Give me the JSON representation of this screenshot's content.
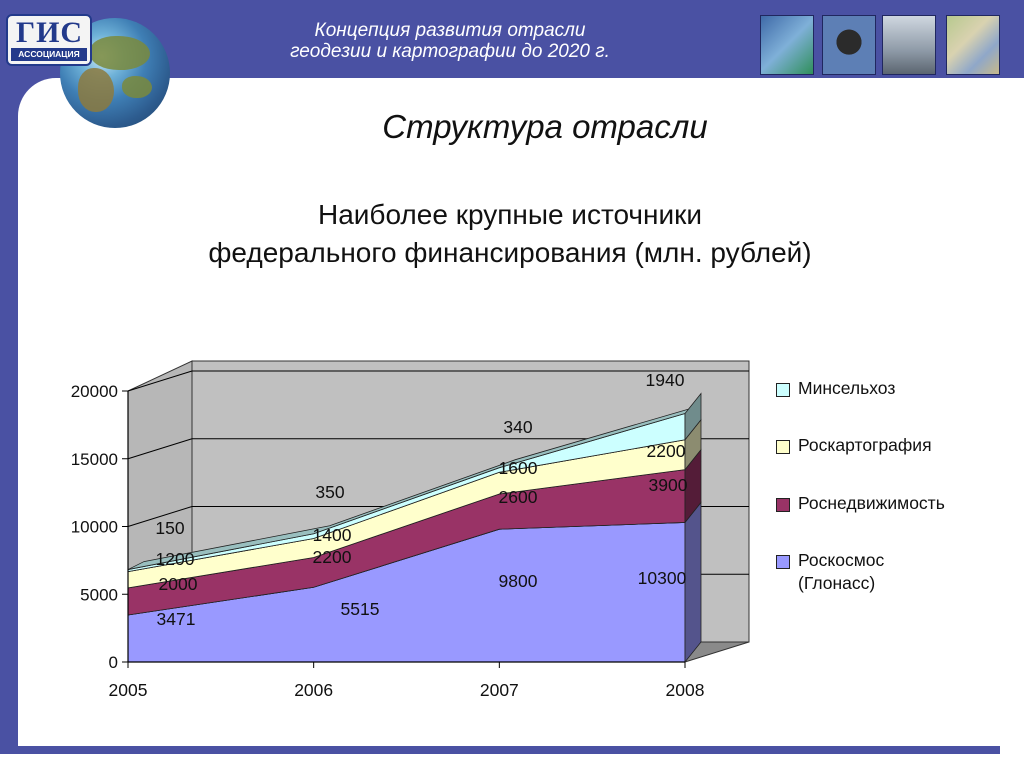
{
  "header": {
    "title_line1": "Концепция развития отрасли",
    "title_line2": "геодезии и картографии до 2020 г.",
    "logo_text": "ГИС",
    "logo_subtext": "АССОЦИАЦИЯ",
    "thumbnails": [
      "software-box-icon",
      "total-station-icon",
      "city-buildings-icon",
      "city-map-icon"
    ]
  },
  "slide": {
    "title": "Структура отрасли"
  },
  "colors": {
    "header_bg": "#4a51a3",
    "series": [
      "#9999ff",
      "#993366",
      "#ffffcc",
      "#ccffff"
    ]
  },
  "chart_data": {
    "type": "area",
    "title_line1": "Наиболее крупные источники",
    "title_line2": "федерального финансирования (млн. рублей)",
    "stacked": true,
    "three_d": true,
    "x": [
      "2005",
      "2006",
      "2007",
      "2008"
    ],
    "ylim": [
      0,
      20000
    ],
    "yticks": [
      "0",
      "5000",
      "10000",
      "15000",
      "20000"
    ],
    "legend_position": "right",
    "series": [
      {
        "name": "Роскосмос (Глонасс)",
        "name_lines": [
          "Роскосмос",
          "(Глонасс)"
        ],
        "values": [
          3471,
          5515,
          9800,
          10300
        ],
        "labels": [
          "3471",
          "5515",
          "9800",
          "10300"
        ]
      },
      {
        "name": "Роснедвижимость",
        "values": [
          2000,
          2200,
          2600,
          3900
        ],
        "labels": [
          "2000",
          "2200",
          "2600",
          "3900"
        ]
      },
      {
        "name": "Роскартография",
        "values": [
          1200,
          1400,
          1600,
          2200
        ],
        "labels": [
          "1200",
          "1400",
          "1600",
          "2200"
        ]
      },
      {
        "name": "Минсельхоз",
        "values": [
          150,
          350,
          340,
          1940
        ],
        "labels": [
          "150",
          "350",
          "340",
          "1940"
        ]
      }
    ]
  }
}
